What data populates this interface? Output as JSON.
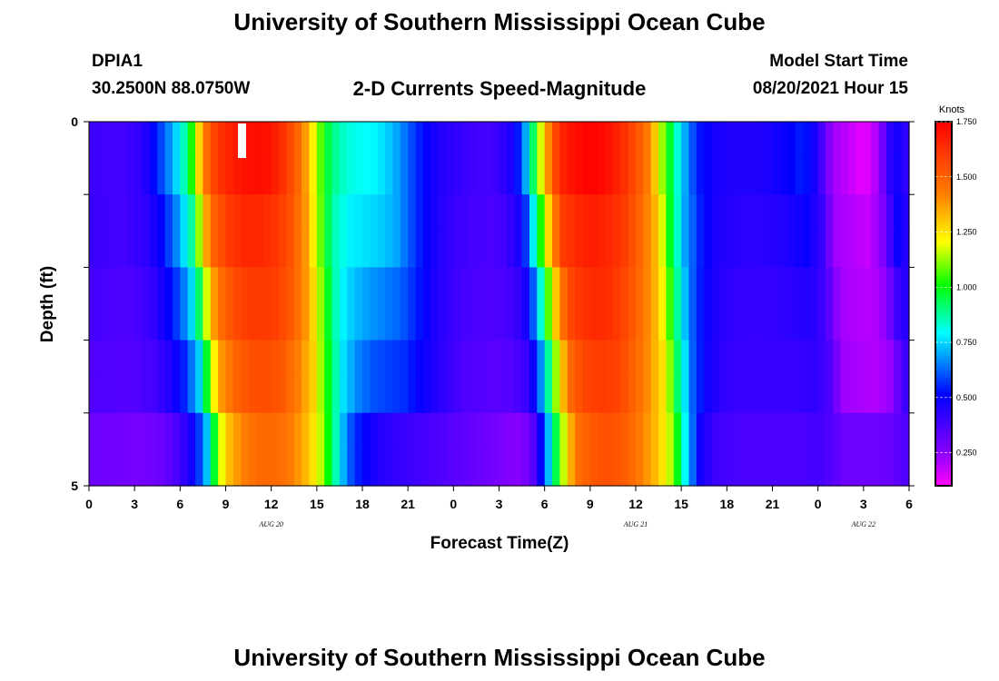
{
  "header": {
    "title": "University of Southern Mississippi Ocean Cube",
    "station_id": "DPIA1",
    "coords": "30.2500N  88.0750W",
    "chart_title": "2-D Currents Speed-Magnitude",
    "model_start_label": "Model Start Time",
    "model_start_value": "08/20/2021 Hour 15"
  },
  "footer": {
    "title": "University of Southern Mississippi Ocean Cube"
  },
  "chart_data": {
    "type": "heatmap",
    "title": "2-D Currents Speed-Magnitude",
    "xlabel": "Forecast Time(Z)",
    "ylabel": "Depth (ft)",
    "x_tick_labels": [
      "0",
      "3",
      "6",
      "9",
      "12",
      "15",
      "18",
      "21",
      "0",
      "3",
      "6",
      "9",
      "12",
      "15",
      "18",
      "21",
      "0",
      "3",
      "6"
    ],
    "x_date_labels": [
      {
        "label": "AUG  20",
        "x_hours": 12
      },
      {
        "label": "AUG  21",
        "x_hours": 36
      },
      {
        "label": "AUG  22",
        "x_hours": 51
      }
    ],
    "x_range_hours": [
      0,
      54
    ],
    "y_tick_labels": [
      "0",
      "5"
    ],
    "ylim": [
      0,
      5
    ],
    "depth_layers": 5,
    "colorbar": {
      "unit": "Knots",
      "min": 0.1,
      "max": 1.75,
      "ticks": [
        "1.750",
        "1.500",
        "1.250",
        "1.000",
        "0.750",
        "0.500",
        "0.250"
      ],
      "tick_values": [
        1.75,
        1.5,
        1.25,
        1.0,
        0.75,
        0.5,
        0.25
      ]
    },
    "colors": {
      "magenta": "#ff00ff",
      "purple": "#8000ff",
      "blue": "#0000ff",
      "cyan": "#00ffff",
      "green": "#00ff00",
      "yellow": "#ffff00",
      "orange": "#ff8000",
      "red": "#ff0000"
    },
    "speed_profile": {
      "time_hours": [
        0,
        2,
        3.5,
        4.5,
        5.5,
        6.5,
        7,
        7.5,
        8,
        9,
        10,
        11,
        12,
        13,
        14,
        14.5,
        15,
        15.5,
        16,
        17,
        18,
        19,
        20,
        21,
        22,
        23,
        24,
        25,
        26,
        27,
        28,
        28.5,
        29,
        29.5,
        30,
        30.5,
        31,
        32,
        33,
        34,
        35,
        36,
        37,
        37.5,
        38,
        38.5,
        39,
        40,
        41,
        42,
        43,
        44,
        45,
        46,
        47,
        48,
        48.5,
        49,
        50,
        51,
        52,
        53,
        54
      ],
      "layer_offsets_hours": [
        0,
        0.2,
        0.5,
        0.8,
        1.1
      ],
      "layer_speeds": [
        [
          0.4,
          0.38,
          0.42,
          0.55,
          0.7,
          0.9,
          1.15,
          1.4,
          1.55,
          1.65,
          1.7,
          1.72,
          1.7,
          1.6,
          1.45,
          1.3,
          1.15,
          1.0,
          0.9,
          0.82,
          0.8,
          0.78,
          0.72,
          0.62,
          0.52,
          0.45,
          0.42,
          0.4,
          0.38,
          0.4,
          0.48,
          0.6,
          0.8,
          1.05,
          1.3,
          1.5,
          1.65,
          1.72,
          1.75,
          1.72,
          1.65,
          1.55,
          1.4,
          1.2,
          1.05,
          0.9,
          0.75,
          0.55,
          0.48,
          0.45,
          0.45,
          0.45,
          0.47,
          0.5,
          0.55,
          0.45,
          0.3,
          0.22,
          0.18,
          0.12,
          0.22,
          0.5,
          0.4
        ],
        [
          0.4,
          0.38,
          0.42,
          0.5,
          0.65,
          0.85,
          1.1,
          1.35,
          1.5,
          1.6,
          1.65,
          1.65,
          1.62,
          1.55,
          1.4,
          1.25,
          1.1,
          0.95,
          0.85,
          0.78,
          0.76,
          0.74,
          0.7,
          0.6,
          0.5,
          0.44,
          0.4,
          0.38,
          0.37,
          0.38,
          0.45,
          0.55,
          0.75,
          1.0,
          1.25,
          1.45,
          1.6,
          1.65,
          1.68,
          1.65,
          1.6,
          1.5,
          1.35,
          1.2,
          1.0,
          0.85,
          0.7,
          0.55,
          0.46,
          0.44,
          0.43,
          0.43,
          0.44,
          0.46,
          0.5,
          0.42,
          0.3,
          0.22,
          0.2,
          0.17,
          0.25,
          0.5,
          0.4
        ],
        [
          0.38,
          0.36,
          0.4,
          0.48,
          0.6,
          0.8,
          1.05,
          1.3,
          1.45,
          1.55,
          1.6,
          1.6,
          1.58,
          1.5,
          1.35,
          1.2,
          1.05,
          0.9,
          0.8,
          0.72,
          0.68,
          0.65,
          0.62,
          0.55,
          0.48,
          0.42,
          0.38,
          0.37,
          0.36,
          0.37,
          0.42,
          0.52,
          0.7,
          0.95,
          1.2,
          1.4,
          1.55,
          1.62,
          1.65,
          1.62,
          1.55,
          1.45,
          1.3,
          1.15,
          0.95,
          0.8,
          0.65,
          0.5,
          0.44,
          0.42,
          0.41,
          0.41,
          0.42,
          0.43,
          0.45,
          0.38,
          0.28,
          0.22,
          0.2,
          0.19,
          0.25,
          0.45,
          0.38
        ],
        [
          0.36,
          0.35,
          0.38,
          0.45,
          0.55,
          0.75,
          1.0,
          1.25,
          1.4,
          1.5,
          1.55,
          1.55,
          1.52,
          1.42,
          1.28,
          1.12,
          0.98,
          0.85,
          0.75,
          0.65,
          0.6,
          0.58,
          0.56,
          0.5,
          0.45,
          0.4,
          0.36,
          0.35,
          0.34,
          0.35,
          0.4,
          0.5,
          0.68,
          0.9,
          1.15,
          1.35,
          1.5,
          1.58,
          1.6,
          1.58,
          1.5,
          1.4,
          1.25,
          1.1,
          0.9,
          0.75,
          0.6,
          0.47,
          0.42,
          0.4,
          0.4,
          0.4,
          0.4,
          0.41,
          0.42,
          0.36,
          0.27,
          0.22,
          0.21,
          0.2,
          0.24,
          0.4,
          0.36
        ],
        [
          0.3,
          0.28,
          0.3,
          0.35,
          0.45,
          0.65,
          0.9,
          1.15,
          1.3,
          1.42,
          1.48,
          1.48,
          1.45,
          1.35,
          1.2,
          1.05,
          0.9,
          0.75,
          0.62,
          0.5,
          0.45,
          0.42,
          0.4,
          0.38,
          0.36,
          0.34,
          0.32,
          0.3,
          0.28,
          0.25,
          0.3,
          0.45,
          0.65,
          0.88,
          1.1,
          1.3,
          1.45,
          1.52,
          1.55,
          1.52,
          1.45,
          1.35,
          1.2,
          1.05,
          0.85,
          0.68,
          0.5,
          0.4,
          0.38,
          0.37,
          0.37,
          0.37,
          0.37,
          0.37,
          0.38,
          0.34,
          0.3,
          0.3,
          0.3,
          0.3,
          0.32,
          0.38,
          0.35
        ]
      ]
    }
  }
}
